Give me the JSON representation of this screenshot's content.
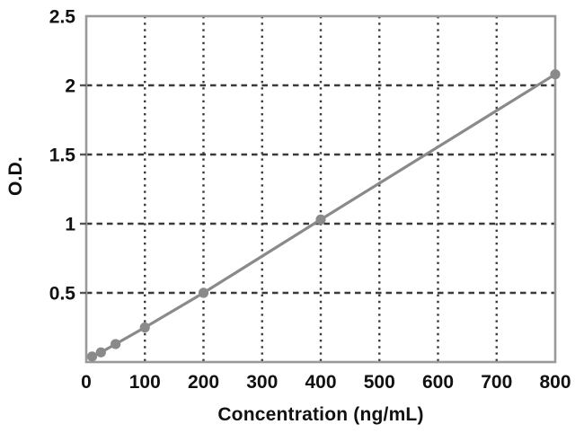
{
  "chart_data": {
    "type": "scatter",
    "subtype": "standard-curve-line",
    "title": "",
    "xlabel": "Concentration (ng/mL)",
    "ylabel": "O.D.",
    "x": [
      10,
      25,
      50,
      100,
      200,
      400,
      800
    ],
    "y": [
      0.04,
      0.07,
      0.13,
      0.25,
      0.5,
      1.03,
      2.08
    ],
    "xlim": [
      0,
      800
    ],
    "ylim": [
      0,
      2.5
    ],
    "x_ticks": [
      0,
      100,
      200,
      300,
      400,
      500,
      600,
      700,
      800
    ],
    "y_ticks": [
      0.5,
      1,
      1.5,
      2,
      2.5
    ],
    "grid": {
      "horizontal_style": "dashed",
      "vertical_style": "dotted",
      "shown": true
    },
    "legend": "none",
    "colors": {
      "line": "#8a8a8a",
      "marker": "#8a8a8a",
      "grid": "#3a3a3a",
      "spine": "#9a9a9a",
      "tick_stub": "#555555",
      "text": "#111111",
      "background": "#ffffff"
    }
  }
}
